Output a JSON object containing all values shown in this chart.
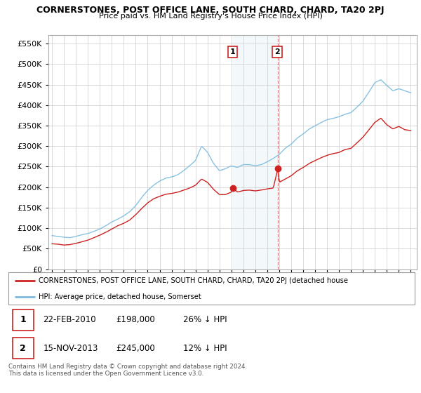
{
  "title": "CORNERSTONES, POST OFFICE LANE, SOUTH CHARD, CHARD, TA20 2PJ",
  "subtitle": "Price paid vs. HM Land Registry's House Price Index (HPI)",
  "hpi_color": "#7bbcde",
  "price_color": "#cc2222",
  "shaded_color": "#daeaf5",
  "sale1_x_year": 2010.13,
  "sale2_x_year": 2013.88,
  "sale1_price": 198000,
  "sale2_price": 245000,
  "legend_line1": "CORNERSTONES, POST OFFICE LANE, SOUTH CHARD, CHARD, TA20 2PJ (detached house",
  "legend_line2": "HPI: Average price, detached house, Somerset",
  "table_row1_num": "1",
  "table_row1_date": "22-FEB-2010",
  "table_row1_price": "£198,000",
  "table_row1_hpi": "26% ↓ HPI",
  "table_row2_num": "2",
  "table_row2_date": "15-NOV-2013",
  "table_row2_price": "£245,000",
  "table_row2_hpi": "12% ↓ HPI",
  "footer": "Contains HM Land Registry data © Crown copyright and database right 2024.\nThis data is licensed under the Open Government Licence v3.0.",
  "ylim": [
    0,
    570000
  ],
  "yticks": [
    0,
    50000,
    100000,
    150000,
    200000,
    250000,
    300000,
    350000,
    400000,
    450000,
    500000,
    550000
  ],
  "xlim_start": 1994.7,
  "xlim_end": 2025.5
}
